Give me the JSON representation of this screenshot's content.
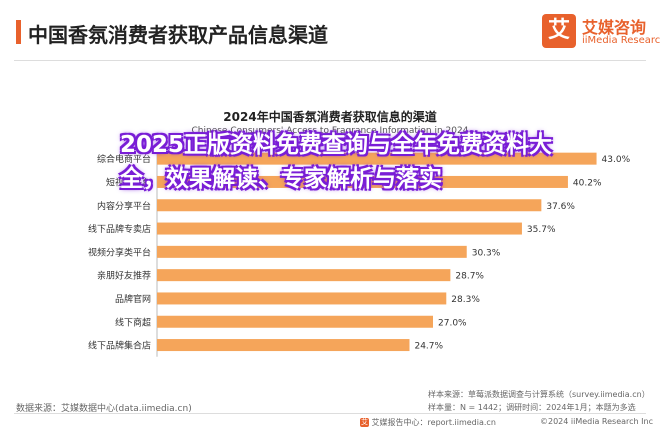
{
  "header": {
    "title": "中国香氛消费者获取产品信息渠道",
    "logo_mark": "艾",
    "logo_cn": "艾媒咨询",
    "logo_en": "iiMedia Research"
  },
  "watermark": "2025正版资料免费查询与全年免费资料大全，效果解读、专家解析与落实",
  "chart_data": {
    "type": "bar",
    "orientation": "horizontal",
    "title": "2024年中国香氛消费者获取信息的渠道",
    "subtitle": "Chinese Consumers' Access to Fragrance Information in 2024",
    "categories": [
      "综合电商平台",
      "短视频平台",
      "内容分享平台",
      "线下品牌专卖店",
      "视频分享类平台",
      "亲朋好友推荐",
      "品牌官网",
      "线下商超",
      "线下品牌集合店"
    ],
    "values": [
      43.0,
      40.2,
      37.6,
      35.7,
      30.3,
      28.7,
      28.3,
      27.0,
      24.7
    ],
    "value_labels": [
      "43.0%",
      "40.2%",
      "37.6%",
      "35.7%",
      "30.3%",
      "28.7%",
      "28.3%",
      "27.0%",
      "24.7%"
    ],
    "unit": "%",
    "xlim": [
      0,
      45
    ],
    "grid": false,
    "bar_color": "#f5a55a"
  },
  "notes": {
    "sample_source": "样本来源：草莓派数据调查与计算系统（survey.iimedia.cn）",
    "sample_size": "样本量：N = 1442；调研时间：2024年1月；本题为多选"
  },
  "source": "数据来源：艾媒数据中心(data.iimedia.cn)",
  "footer": {
    "icon": "艾",
    "report": "艾媒报告中心：report.iimedia.cn",
    "copyright": "©2024  iiMedia Research  Inc"
  }
}
